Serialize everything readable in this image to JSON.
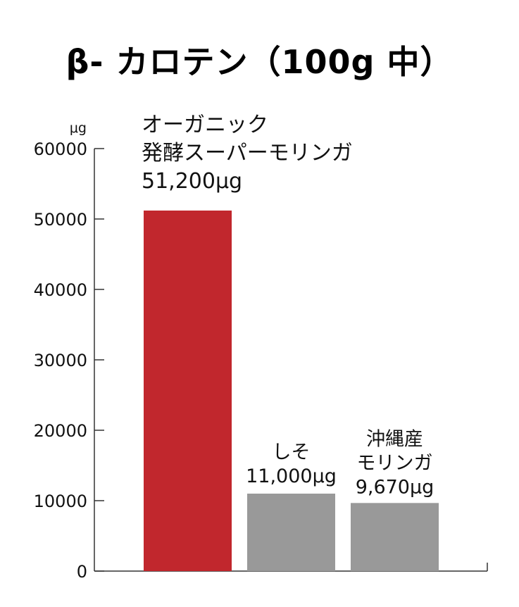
{
  "chart_data": {
    "type": "bar",
    "title": "β- カロテン（100g 中）",
    "y_unit": "μg",
    "ylim": [
      0,
      60000
    ],
    "yticks": [
      "0",
      "10000",
      "20000",
      "30000",
      "40000",
      "50000",
      "60000"
    ],
    "grid": false,
    "categories": [
      "オーガニック 発酵スーパーモリンガ",
      "しそ",
      "沖縄産 モリンガ"
    ],
    "values": [
      51200,
      11000,
      9670
    ],
    "colors": [
      "#c1272d",
      "#999999",
      "#999999"
    ],
    "bar_labels": [
      [
        "オーガニック",
        "発酵スーパーモリンガ",
        "51,200μg"
      ],
      [
        "しそ",
        "11,000μg"
      ],
      [
        "沖縄産",
        "モリンガ",
        "9,670μg"
      ]
    ]
  }
}
